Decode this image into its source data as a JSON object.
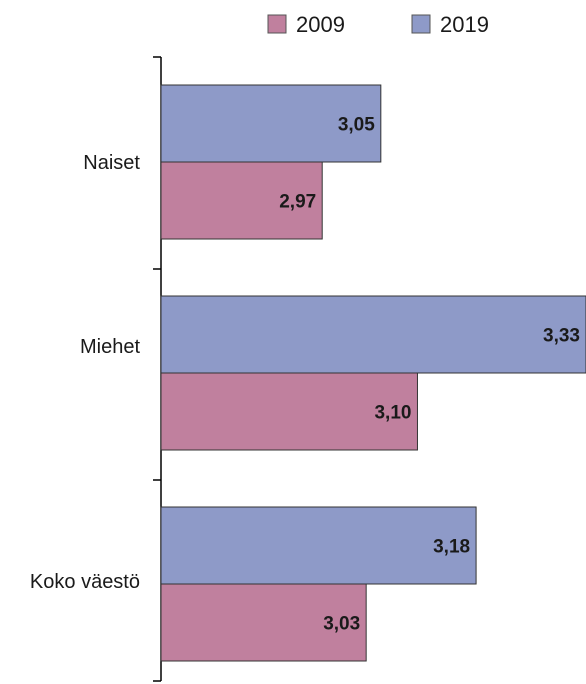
{
  "chart_data": {
    "type": "bar",
    "orientation": "horizontal",
    "categories": [
      "Naiset",
      "Miehet",
      "Koko väestö"
    ],
    "series": [
      {
        "name": "2009",
        "values": [
          2.97,
          3.1,
          3.03
        ],
        "labels": [
          "2,97",
          "3,10",
          "3,03"
        ],
        "color": "#c0809e"
      },
      {
        "name": "2019",
        "values": [
          3.05,
          3.33,
          3.18
        ],
        "labels": [
          "3,05",
          "3,33",
          "3,18"
        ],
        "color": "#8e9ac8"
      }
    ],
    "legend_position": "top-right",
    "grid": false,
    "xlim": [
      2.75,
      3.33
    ]
  }
}
